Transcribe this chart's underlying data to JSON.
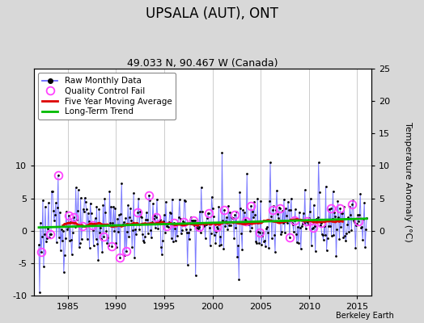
{
  "title": "UPSALA (AUT), ONT",
  "subtitle": "49.033 N, 90.467 W (Canada)",
  "ylabel": "Temperature Anomaly (°C)",
  "watermark": "Berkeley Earth",
  "xlim": [
    1981.5,
    2016.5
  ],
  "ylim": [
    -10,
    25
  ],
  "yticks_left": [
    -10,
    -5,
    0,
    5,
    10
  ],
  "yticks_right": [
    0,
    5,
    10,
    15,
    20,
    25
  ],
  "xticks": [
    1985,
    1990,
    1995,
    2000,
    2005,
    2010,
    2015
  ],
  "fig_bg_color": "#d8d8d8",
  "plot_bg_color": "#ffffff",
  "line_color": "#6666ff",
  "ma_color": "#dd0000",
  "trend_color": "#00bb00",
  "qc_color": "#ff44ff",
  "seed": 123
}
